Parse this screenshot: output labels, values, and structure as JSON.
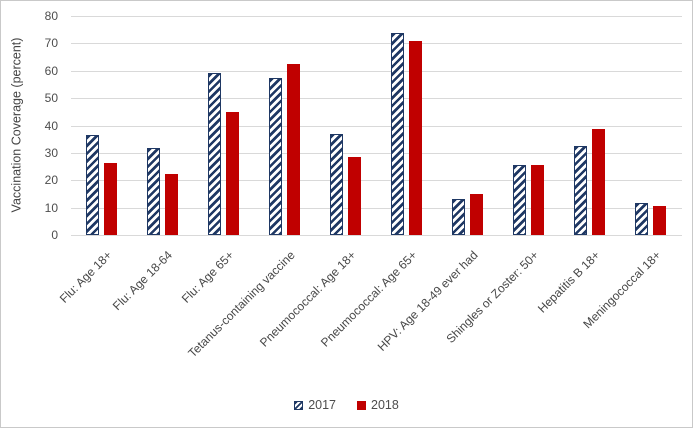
{
  "chart_data": {
    "type": "bar",
    "title": "",
    "xlabel": "",
    "ylabel": "Vaccination Coverage (percent)",
    "ylim": [
      0,
      80
    ],
    "ytick_step": 10,
    "ytick_labels": [
      "0",
      "10",
      "20",
      "30",
      "40",
      "50",
      "60",
      "70",
      "80"
    ],
    "grid": "horizontal gridlines on",
    "legend_position": "bottom center",
    "legend_entries": [
      "2017",
      "2018"
    ],
    "categories": [
      "Flu: Age 18+",
      "Flu: Age 18-64",
      "Flu: Age 65+",
      "Tetanus-containing vaccine",
      "Pneumococcal: Age 18+",
      "Pneumococcal: Age 65+",
      "HPV: Age 18-49 ever had",
      "Shingles or Zoster: 50+",
      "Hepatitis B 18+",
      "Meningococcal 18+"
    ],
    "series": [
      {
        "name": "2017",
        "fill": "hatched",
        "color": "#1f3864",
        "values": [
          36.6,
          31.6,
          59.3,
          57.4,
          36.8,
          73.9,
          13.0,
          25.4,
          32.4,
          11.7
        ]
      },
      {
        "name": "2018",
        "fill": "solid",
        "color": "#c00000",
        "values": [
          26.4,
          22.4,
          44.9,
          62.4,
          28.4,
          71.0,
          15.1,
          25.5,
          38.7,
          10.5
        ]
      }
    ],
    "colors": {
      "series_2017": "#1f3864",
      "series_2018": "#c00000",
      "gridline": "#d9d9d9",
      "axis_text": "#4d4d4d",
      "chart_border": "#c9c9c9"
    }
  }
}
